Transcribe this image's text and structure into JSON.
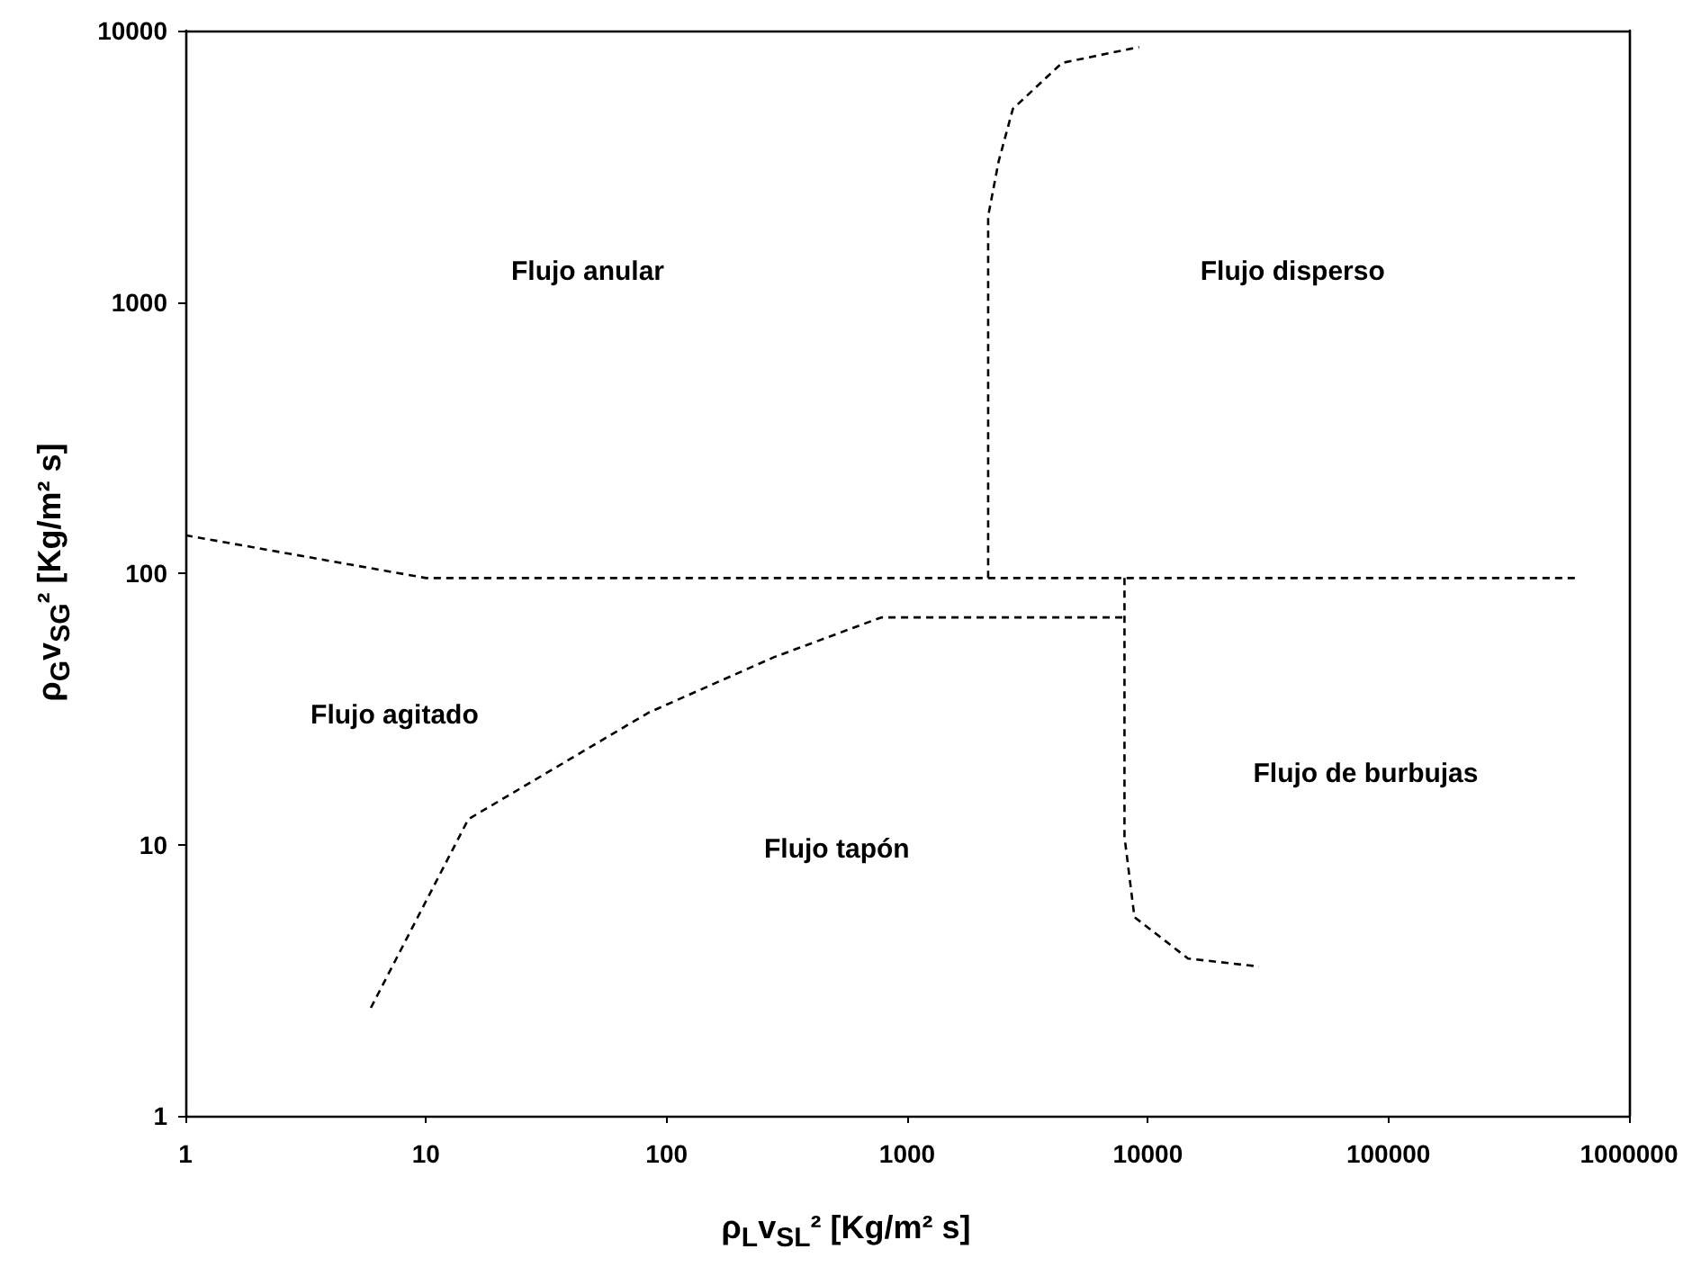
{
  "chart_data": {
    "type": "line",
    "xlabel": "ρ$_{L}$v$_{SL}$² [Kg/m² s]",
    "ylabel": "ρ$_{G}$v$_{SG}$² [Kg/m² s]",
    "annotations": [
      "Flujo anular",
      "Flujo disperso",
      "Flujo agitado",
      "Flujo tapón",
      "Flujo de burbujas"
    ],
    "log": "xy",
    "grid": false,
    "marker": "none",
    "line_style": "dashed",
    "xlim": [
      1,
      1000000
    ],
    "xticks": [
      1,
      10,
      100,
      1000,
      10000,
      100000,
      1000000
    ],
    "ylim": [
      1,
      10000
    ],
    "yticks": [
      1,
      10,
      100,
      1000,
      10000
    ],
    "series": [
      {
        "color": "#000000",
        "x": [
          1,
          10,
          620000
        ],
        "values": [
          138,
          96,
          96
        ]
      },
      {
        "color": "#000000",
        "x": [
          2170,
          2170,
          2400,
          2750,
          4400,
          9200
        ],
        "values": [
          96,
          2070,
          3300,
          5150,
          7600,
          8700
        ]
      },
      {
        "color": "#000000",
        "x": [
          5.9,
          15,
          84,
          279,
          780,
          8000
        ],
        "values": [
          2.5,
          12.4,
          30.6,
          49,
          68.7,
          68.7
        ]
      },
      {
        "color": "#000000",
        "x": [
          8000,
          8000,
          8800,
          14700,
          29000
        ],
        "values": [
          96,
          10.7,
          5.4,
          3.8,
          3.55
        ]
      }
    ]
  }
}
